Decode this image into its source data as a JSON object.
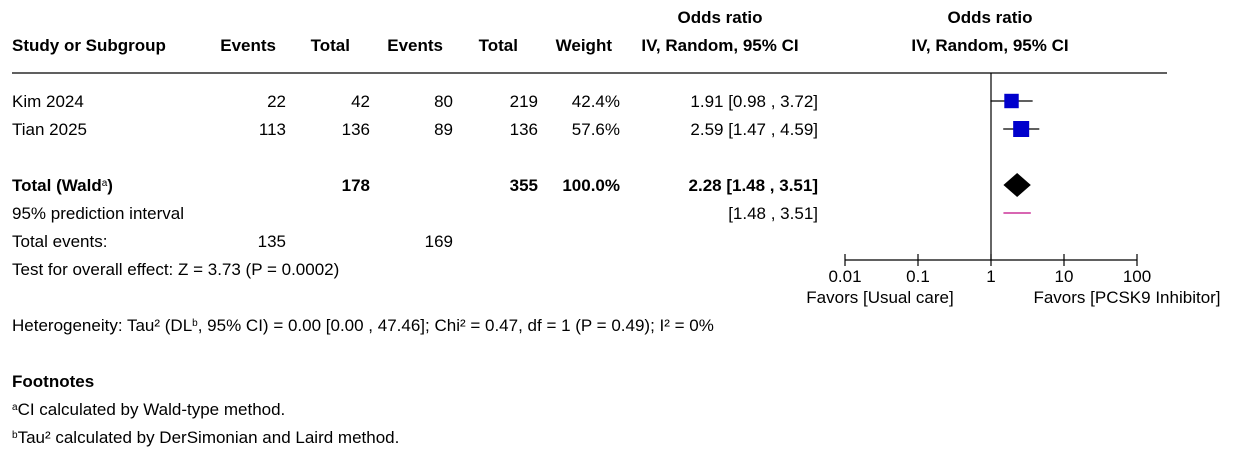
{
  "header": {
    "study": "Study or Subgroup",
    "events1": "Events",
    "total1": "Total",
    "events2": "Events",
    "total2": "Total",
    "weight": "Weight",
    "or_title": "Odds ratio",
    "or_method": "IV, Random, 95% CI",
    "plot_title": "Odds ratio",
    "plot_method": "IV, Random, 95% CI"
  },
  "studies": [
    {
      "name": "Kim 2024",
      "events1": "22",
      "total1": "42",
      "events2": "80",
      "total2": "219",
      "weight": "42.4%",
      "ci": "1.91 [0.98 , 3.72]"
    },
    {
      "name": "Tian 2025",
      "events1": "113",
      "total1": "136",
      "events2": "89",
      "total2": "136",
      "weight": "57.6%",
      "ci": "2.59 [1.47 , 4.59]"
    }
  ],
  "total": {
    "label": "Total (Wald",
    "label_sup": "a",
    "label_close": ")",
    "total1": "178",
    "total2": "355",
    "weight": "100.0%",
    "ci": "2.28 [1.48 , 3.51]"
  },
  "prediction": {
    "label": "95% prediction interval",
    "ci": "[1.48 , 3.51]"
  },
  "total_events": {
    "label": "Total events:",
    "events1": "135",
    "events2": "169"
  },
  "overall_effect": "Test for overall effect: Z = 3.73 (P = 0.0002)",
  "heterogeneity": {
    "pre": "Heterogeneity: Tau² (DL",
    "sup": "b",
    "post": ", 95% CI) = 0.00 [0.00 , 47.46]; Chi² = 0.47, df = 1 (P = 0.49); I² = 0%"
  },
  "footnotes": {
    "title": "Footnotes",
    "a_mark": "a",
    "a_text": "CI calculated by Wald-type method.",
    "b_mark": "b",
    "b_text": "Tau² calculated by DerSimonian and Laird method."
  },
  "chart_data": {
    "type": "scatter",
    "scale": "log",
    "xlim": [
      0.01,
      100
    ],
    "ticks": [
      0.01,
      0.1,
      1,
      10,
      100
    ],
    "tick_labels": [
      "0.01",
      "0.1",
      "1",
      "10",
      "100"
    ],
    "favors_left": "Favors [Usual care]",
    "favors_right": "Favors [PCSK9 Inhibitor]",
    "studies": [
      {
        "name": "Kim 2024",
        "or": 1.91,
        "lo": 0.98,
        "hi": 3.72,
        "weight": 42.4
      },
      {
        "name": "Tian 2025",
        "or": 2.59,
        "lo": 1.47,
        "hi": 4.59,
        "weight": 57.6
      }
    ],
    "pooled": {
      "or": 2.28,
      "lo": 1.48,
      "hi": 3.51
    },
    "prediction_interval": {
      "lo": 1.48,
      "hi": 3.51
    },
    "colors": {
      "study": "#0000cc",
      "pooled": "#000000",
      "prediction": "#cc3399"
    }
  }
}
